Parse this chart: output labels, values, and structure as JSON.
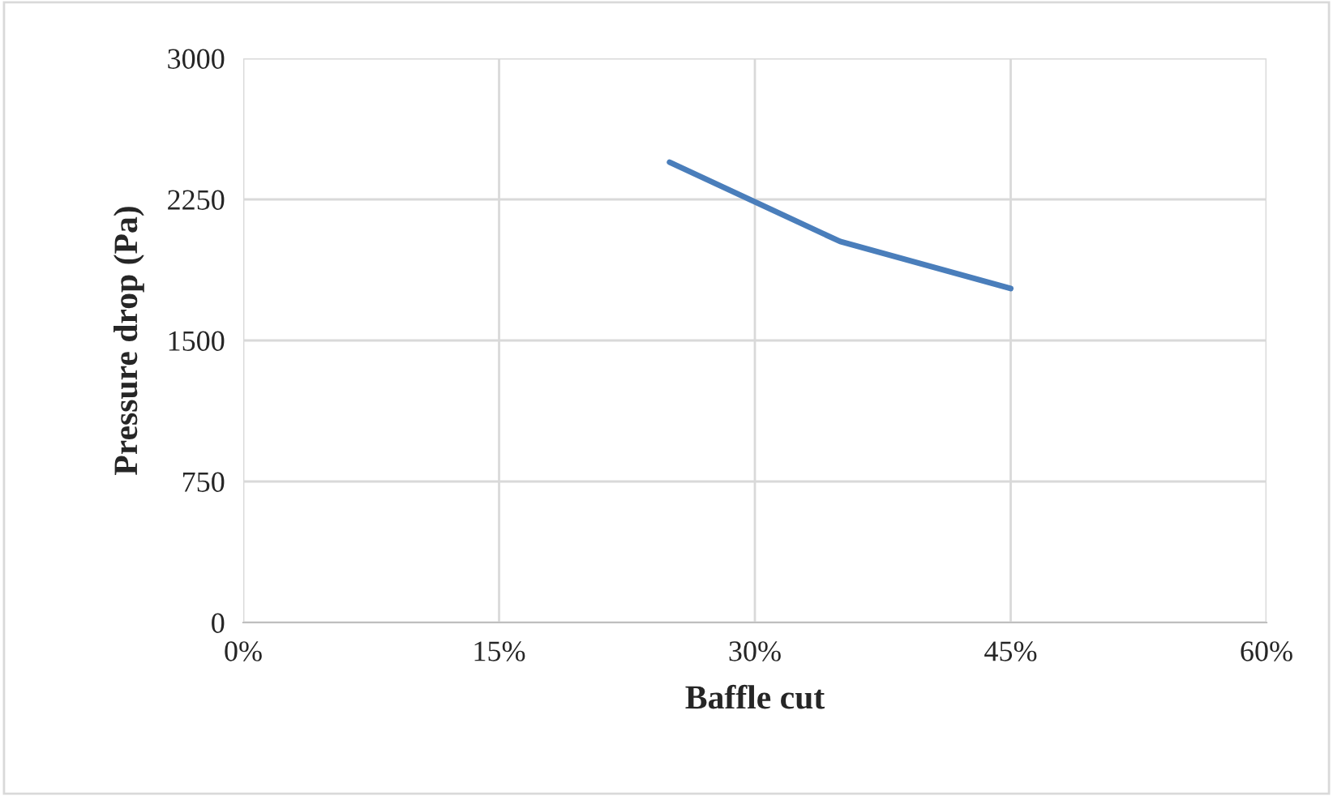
{
  "chart_data": {
    "type": "line",
    "xlabel": "Baffle cut",
    "ylabel": "Pressure drop (Pa)",
    "x": [
      25,
      35,
      45
    ],
    "series": [
      {
        "color": "#4a7ebb",
        "values": [
          2448,
          2026,
          1776
        ]
      }
    ],
    "xlim": [
      0,
      60
    ],
    "xticks": [
      {
        "value": 0,
        "label": "0%"
      },
      {
        "value": 15,
        "label": "15%"
      },
      {
        "value": 30,
        "label": "30%"
      },
      {
        "value": 45,
        "label": "45%"
      },
      {
        "value": 60,
        "label": "60%"
      }
    ],
    "ylim": [
      0,
      3000
    ],
    "yticks": [
      0,
      750,
      1500,
      2250,
      3000
    ],
    "grid": true,
    "legend": false,
    "marker": "none",
    "line_style": "solid"
  }
}
